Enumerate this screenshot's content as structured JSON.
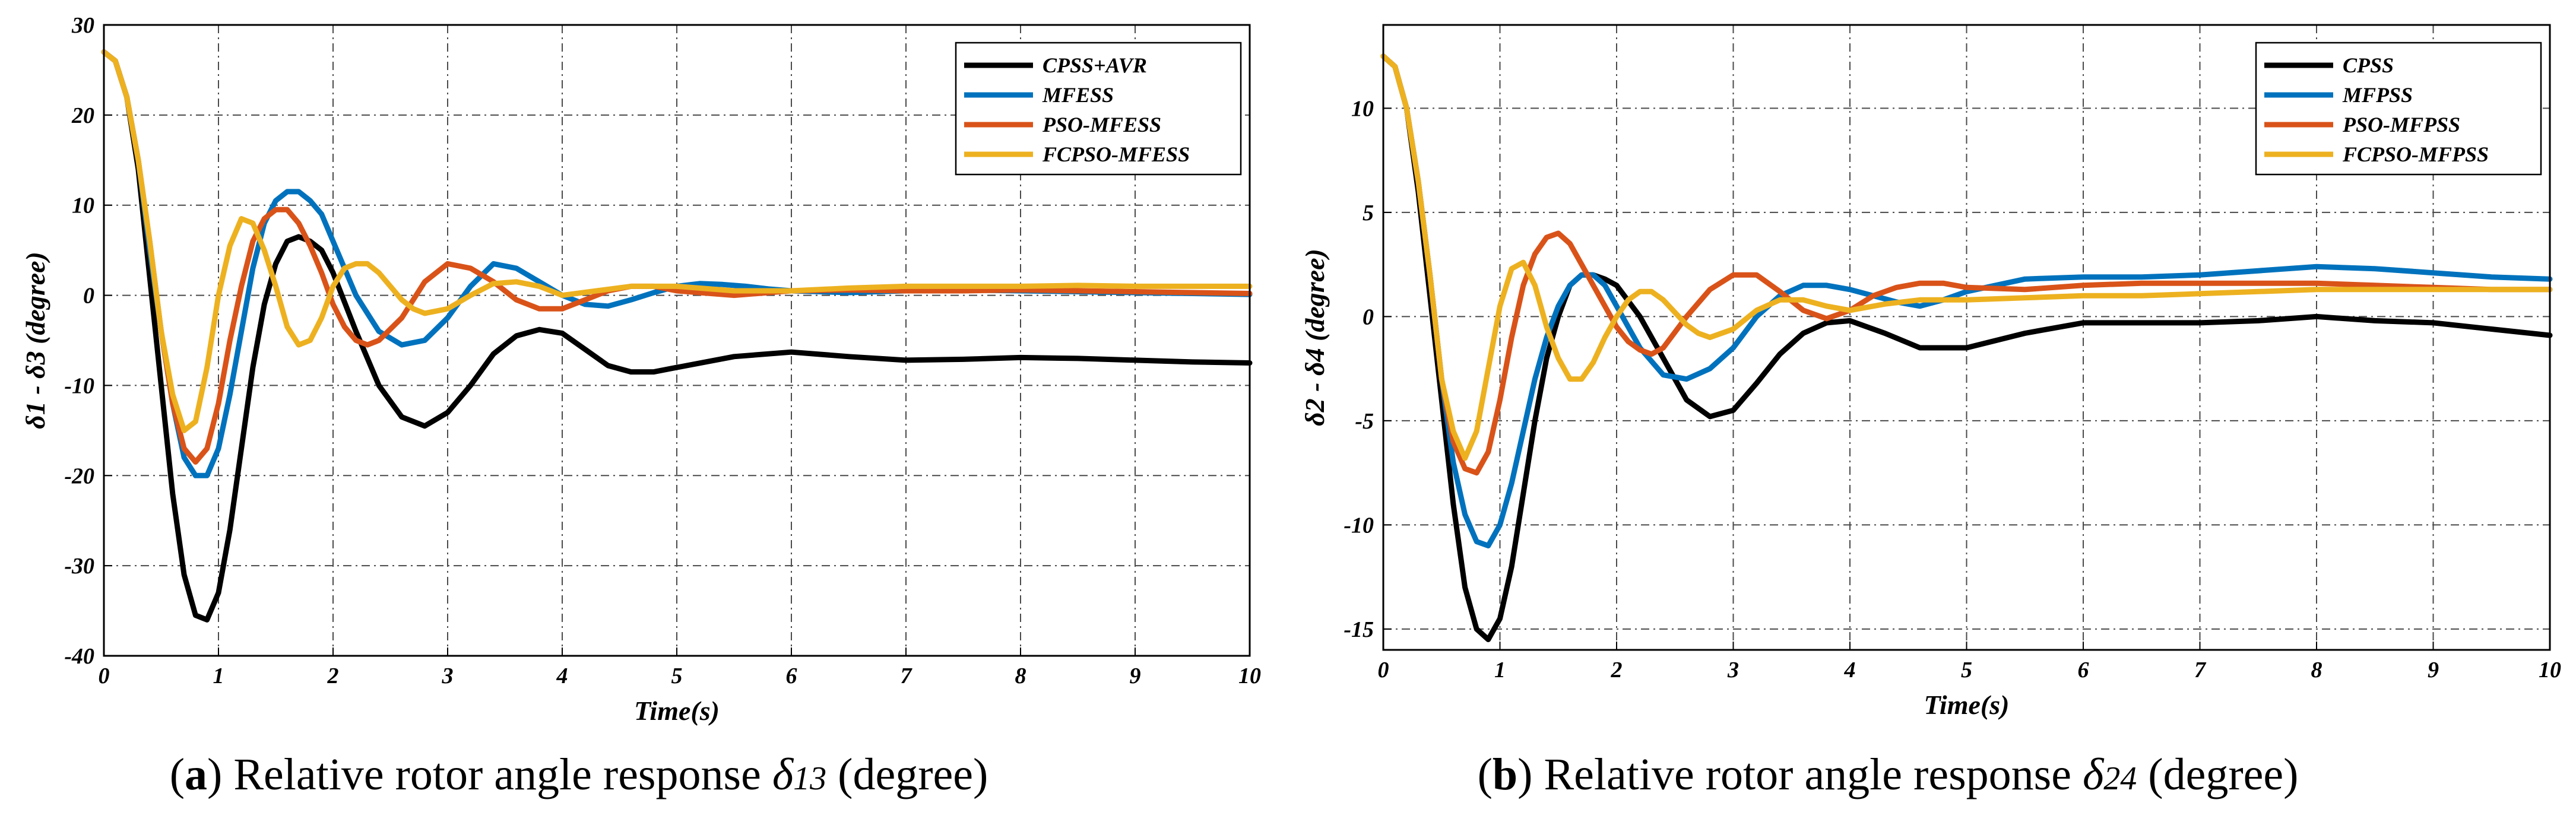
{
  "colors": {
    "black": "#000000",
    "blue": "#0072BD",
    "orange": "#D95319",
    "yellow": "#EDB120"
  },
  "captions": {
    "a": {
      "letter": "a",
      "text": " Relative rotor angle response ",
      "symbol": "δ",
      "sub": "13",
      "unit": " (degree)"
    },
    "b": {
      "letter": "b",
      "text": " Relative rotor angle response ",
      "symbol": "δ",
      "sub": "24",
      "unit": " (degree)"
    }
  },
  "chart_data": [
    {
      "type": "line",
      "title": "",
      "xlabel": "Time(s)",
      "ylabel": "δ1 - δ3 (degree)",
      "xlim": [
        0,
        10
      ],
      "ylim": [
        -40,
        30
      ],
      "xticks": [
        0,
        1,
        2,
        3,
        4,
        5,
        6,
        7,
        8,
        9,
        10
      ],
      "yticks": [
        -40,
        -30,
        -20,
        -10,
        0,
        10,
        20,
        30
      ],
      "grid": true,
      "legend_position": "top-right",
      "series": [
        {
          "name": "CPSS+AVR",
          "color": "#000000",
          "x": [
            0,
            0.1,
            0.2,
            0.3,
            0.4,
            0.5,
            0.6,
            0.7,
            0.8,
            0.9,
            1.0,
            1.1,
            1.2,
            1.3,
            1.4,
            1.5,
            1.6,
            1.7,
            1.8,
            1.9,
            2.0,
            2.2,
            2.4,
            2.6,
            2.8,
            3.0,
            3.2,
            3.4,
            3.6,
            3.8,
            4.0,
            4.2,
            4.4,
            4.6,
            4.8,
            5.0,
            5.5,
            6.0,
            6.5,
            7.0,
            7.5,
            8.0,
            8.5,
            9.0,
            9.5,
            10.0
          ],
          "y": [
            27,
            26,
            22,
            14,
            2,
            -10,
            -22,
            -31,
            -35.5,
            -36,
            -33,
            -26,
            -17,
            -8,
            -1,
            3.5,
            6,
            6.5,
            6,
            5,
            2.5,
            -4,
            -10,
            -13.5,
            -14.5,
            -13,
            -10,
            -6.5,
            -4.5,
            -3.8,
            -4.2,
            -6,
            -7.8,
            -8.5,
            -8.5,
            -8,
            -6.8,
            -6.3,
            -6.8,
            -7.2,
            -7.1,
            -6.9,
            -7,
            -7.2,
            -7.4,
            -7.5
          ]
        },
        {
          "name": "MFESS",
          "color": "#0072BD",
          "x": [
            0,
            0.1,
            0.2,
            0.3,
            0.4,
            0.5,
            0.6,
            0.7,
            0.8,
            0.9,
            1.0,
            1.1,
            1.2,
            1.3,
            1.4,
            1.5,
            1.6,
            1.7,
            1.8,
            1.9,
            2.0,
            2.2,
            2.4,
            2.6,
            2.8,
            3.0,
            3.2,
            3.4,
            3.6,
            3.8,
            4.0,
            4.2,
            4.4,
            4.6,
            4.8,
            5.0,
            5.2,
            5.4,
            5.6,
            5.8,
            6.0,
            6.5,
            7.0,
            7.5,
            8.0,
            8.5,
            9.0,
            9.5,
            10.0
          ],
          "y": [
            27,
            26,
            22,
            15,
            5,
            -4,
            -12,
            -18,
            -20,
            -20,
            -17,
            -11,
            -4,
            3,
            8,
            10.5,
            11.5,
            11.5,
            10.5,
            9,
            6,
            0,
            -4,
            -5.5,
            -5,
            -2.5,
            1,
            3.5,
            3,
            1.5,
            0,
            -1,
            -1.2,
            -0.5,
            0.3,
            1,
            1.3,
            1.2,
            1,
            0.7,
            0.5,
            0.3,
            0.5,
            0.6,
            0.5,
            0.4,
            0.3,
            0.2,
            0.1
          ]
        },
        {
          "name": "PSO-MFESS",
          "color": "#D95319",
          "x": [
            0,
            0.1,
            0.2,
            0.3,
            0.4,
            0.5,
            0.6,
            0.7,
            0.8,
            0.9,
            1.0,
            1.1,
            1.2,
            1.3,
            1.4,
            1.5,
            1.6,
            1.7,
            1.8,
            1.9,
            2.0,
            2.1,
            2.2,
            2.3,
            2.4,
            2.6,
            2.8,
            3.0,
            3.2,
            3.4,
            3.6,
            3.8,
            4.0,
            4.2,
            4.4,
            4.6,
            4.8,
            5.0,
            5.5,
            6.0,
            6.5,
            7.0,
            7.5,
            8.0,
            8.5,
            9.0,
            9.5,
            10.0
          ],
          "y": [
            27,
            26,
            22,
            15,
            6,
            -4,
            -12,
            -17,
            -18.5,
            -17,
            -12,
            -5,
            1,
            6,
            8.5,
            9.5,
            9.5,
            8,
            5.5,
            2.5,
            -1,
            -3.5,
            -5,
            -5.5,
            -5,
            -2.5,
            1.5,
            3.5,
            3,
            1.5,
            -0.5,
            -1.5,
            -1.5,
            -0.5,
            0.5,
            1,
            1,
            0.5,
            0,
            0.5,
            0.6,
            0.5,
            0.5,
            0.6,
            0.5,
            0.4,
            0.3,
            0.2
          ]
        },
        {
          "name": "FCPSO-MFESS",
          "color": "#EDB120",
          "x": [
            0,
            0.1,
            0.2,
            0.3,
            0.4,
            0.5,
            0.6,
            0.7,
            0.8,
            0.9,
            1.0,
            1.1,
            1.2,
            1.3,
            1.4,
            1.5,
            1.6,
            1.7,
            1.8,
            1.9,
            2.0,
            2.1,
            2.2,
            2.3,
            2.4,
            2.5,
            2.6,
            2.7,
            2.8,
            3.0,
            3.2,
            3.4,
            3.6,
            3.8,
            4.0,
            4.3,
            4.6,
            5.0,
            5.5,
            6.0,
            6.5,
            7.0,
            7.5,
            8.0,
            8.5,
            9.0,
            9.5,
            10.0
          ],
          "y": [
            27,
            26,
            22,
            15,
            6,
            -4,
            -11,
            -15,
            -14,
            -8,
            0,
            5.5,
            8.5,
            8,
            5,
            1,
            -3.5,
            -5.5,
            -5,
            -2.5,
            1,
            3,
            3.5,
            3.5,
            2.5,
            1,
            -0.5,
            -1.5,
            -2,
            -1.5,
            0,
            1.3,
            1.5,
            1,
            0,
            0.5,
            1,
            1,
            0.5,
            0.5,
            0.8,
            1,
            1,
            1,
            1.1,
            1,
            1,
            1
          ]
        }
      ]
    },
    {
      "type": "line",
      "title": "",
      "xlabel": "Time(s)",
      "ylabel": "δ2 - δ4 (degree)",
      "xlim": [
        0,
        10
      ],
      "ylim": [
        -16,
        14
      ],
      "xticks": [
        0,
        1,
        2,
        3,
        4,
        5,
        6,
        7,
        8,
        9,
        10
      ],
      "yticks": [
        -15,
        -10,
        -5,
        0,
        5,
        10
      ],
      "grid": true,
      "legend_position": "top-right",
      "series": [
        {
          "name": "CPSS",
          "color": "#000000",
          "x": [
            0,
            0.1,
            0.2,
            0.3,
            0.4,
            0.5,
            0.6,
            0.7,
            0.8,
            0.9,
            1.0,
            1.1,
            1.2,
            1.3,
            1.4,
            1.5,
            1.6,
            1.7,
            1.8,
            1.9,
            2.0,
            2.2,
            2.4,
            2.6,
            2.8,
            3.0,
            3.2,
            3.4,
            3.6,
            3.8,
            4.0,
            4.3,
            4.6,
            5.0,
            5.5,
            6.0,
            6.5,
            7.0,
            7.5,
            8.0,
            8.5,
            9.0,
            9.5,
            10.0
          ],
          "y": [
            12.5,
            12,
            10,
            6,
            1,
            -4,
            -9,
            -13,
            -15,
            -15.5,
            -14.5,
            -12,
            -8.5,
            -5,
            -2,
            0,
            1.5,
            2,
            2,
            1.8,
            1.5,
            0,
            -2,
            -4,
            -4.8,
            -4.5,
            -3.2,
            -1.8,
            -0.8,
            -0.3,
            -0.2,
            -0.8,
            -1.5,
            -1.5,
            -0.8,
            -0.3,
            -0.3,
            -0.3,
            -0.2,
            0,
            -0.2,
            -0.3,
            -0.6,
            -0.9
          ]
        },
        {
          "name": "MFPSS",
          "color": "#0072BD",
          "x": [
            0,
            0.1,
            0.2,
            0.3,
            0.4,
            0.5,
            0.6,
            0.7,
            0.8,
            0.9,
            1.0,
            1.1,
            1.2,
            1.3,
            1.4,
            1.5,
            1.6,
            1.7,
            1.8,
            1.9,
            2.0,
            2.2,
            2.4,
            2.6,
            2.8,
            3.0,
            3.2,
            3.4,
            3.6,
            3.8,
            4.0,
            4.2,
            4.4,
            4.6,
            4.8,
            5.0,
            5.5,
            6.0,
            6.5,
            7.0,
            7.5,
            8.0,
            8.5,
            9.0,
            9.5,
            10.0
          ],
          "y": [
            12.5,
            12,
            10,
            6.5,
            2,
            -3,
            -7,
            -9.5,
            -10.8,
            -11,
            -10,
            -8,
            -5.5,
            -3,
            -1,
            0.5,
            1.5,
            2,
            2,
            1.5,
            0.5,
            -1.5,
            -2.8,
            -3,
            -2.5,
            -1.5,
            0,
            1,
            1.5,
            1.5,
            1.3,
            1,
            0.7,
            0.5,
            0.8,
            1.2,
            1.8,
            1.9,
            1.9,
            2,
            2.2,
            2.4,
            2.3,
            2.1,
            1.9,
            1.8
          ]
        },
        {
          "name": "PSO-MFPSS",
          "color": "#D95319",
          "x": [
            0,
            0.1,
            0.2,
            0.3,
            0.4,
            0.5,
            0.6,
            0.7,
            0.8,
            0.9,
            1.0,
            1.1,
            1.2,
            1.3,
            1.4,
            1.5,
            1.6,
            1.7,
            1.8,
            1.9,
            2.0,
            2.1,
            2.2,
            2.3,
            2.4,
            2.6,
            2.8,
            3.0,
            3.2,
            3.4,
            3.6,
            3.8,
            4.0,
            4.2,
            4.4,
            4.6,
            4.8,
            5.0,
            5.5,
            6.0,
            6.5,
            7.0,
            7.5,
            8.0,
            8.5,
            9.0,
            9.5,
            10.0
          ],
          "y": [
            12.5,
            12,
            10,
            6.5,
            2,
            -3,
            -6,
            -7.3,
            -7.5,
            -6.5,
            -4,
            -1,
            1.5,
            3,
            3.8,
            4,
            3.5,
            2.5,
            1.5,
            0.5,
            -0.5,
            -1.2,
            -1.6,
            -1.8,
            -1.5,
            0,
            1.3,
            2,
            2,
            1.2,
            0.3,
            -0.1,
            0.3,
            1,
            1.4,
            1.6,
            1.6,
            1.4,
            1.3,
            1.5,
            1.6,
            1.6,
            1.6,
            1.6,
            1.5,
            1.4,
            1.3,
            1.3
          ]
        },
        {
          "name": "FCPSO-MFPSS",
          "color": "#EDB120",
          "x": [
            0,
            0.1,
            0.2,
            0.3,
            0.4,
            0.5,
            0.6,
            0.7,
            0.8,
            0.9,
            1.0,
            1.1,
            1.2,
            1.3,
            1.4,
            1.5,
            1.6,
            1.7,
            1.8,
            1.9,
            2.0,
            2.1,
            2.2,
            2.3,
            2.4,
            2.5,
            2.6,
            2.7,
            2.8,
            3.0,
            3.2,
            3.4,
            3.6,
            3.8,
            4.0,
            4.3,
            4.6,
            5.0,
            5.5,
            6.0,
            6.5,
            7.0,
            7.5,
            8.0,
            8.5,
            9.0,
            9.5,
            10.0
          ],
          "y": [
            12.5,
            12,
            10,
            6.5,
            2,
            -3,
            -5.5,
            -6.8,
            -5.5,
            -2.5,
            0.5,
            2.3,
            2.6,
            1.5,
            -0.5,
            -2,
            -3,
            -3,
            -2.2,
            -1,
            0,
            0.8,
            1.2,
            1.2,
            0.8,
            0.2,
            -0.4,
            -0.8,
            -1,
            -0.6,
            0.3,
            0.8,
            0.8,
            0.5,
            0.3,
            0.6,
            0.8,
            0.8,
            0.9,
            1,
            1,
            1.1,
            1.2,
            1.3,
            1.3,
            1.3,
            1.3,
            1.3
          ]
        }
      ]
    }
  ]
}
